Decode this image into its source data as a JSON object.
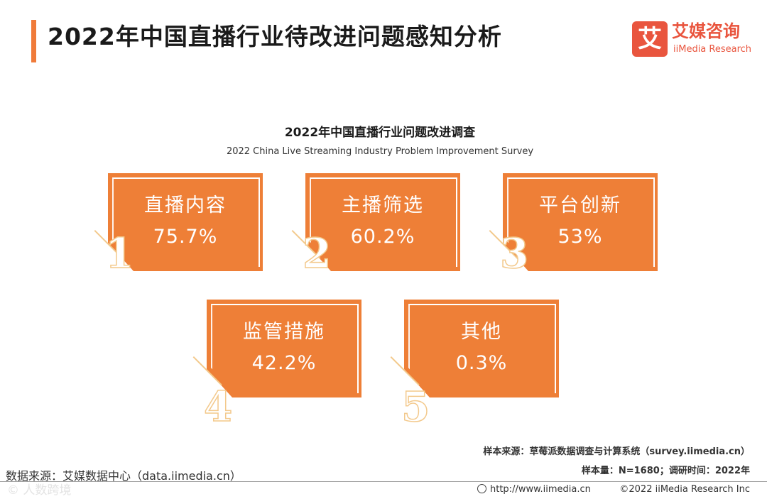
{
  "header": {
    "title": "2022年中国直播行业待改进问题感知分析"
  },
  "logo": {
    "mark": "艾",
    "name_cn": "艾媒咨询",
    "name_en": "iiMedia Research"
  },
  "subtitle": {
    "cn": "2022年中国直播行业问题改进调查",
    "en": "2022 China Live Streaming Industry Problem Improvement Survey"
  },
  "items": [
    {
      "rank": "1",
      "label": "直播内容",
      "value": "75.7%"
    },
    {
      "rank": "2",
      "label": "主播筛选",
      "value": "60.2%"
    },
    {
      "rank": "3",
      "label": "平台创新",
      "value": "53%"
    },
    {
      "rank": "4",
      "label": "监管措施",
      "value": "42.2%"
    },
    {
      "rank": "5",
      "label": "其他",
      "value": "0.3%"
    }
  ],
  "footer": {
    "sample_source": "样本来源：草莓派数据调查与计算系统（survey.iimedia.cn）",
    "data_source": "数据来源：艾媒数据中心（data.iimedia.cn）",
    "sample_size": "样本量：N=1680；调研时间：2022年",
    "url": "http://www.iimedia.cn",
    "copyright": "©2022  iiMedia Research  Inc",
    "watermark": "© 人数跨境"
  }
}
